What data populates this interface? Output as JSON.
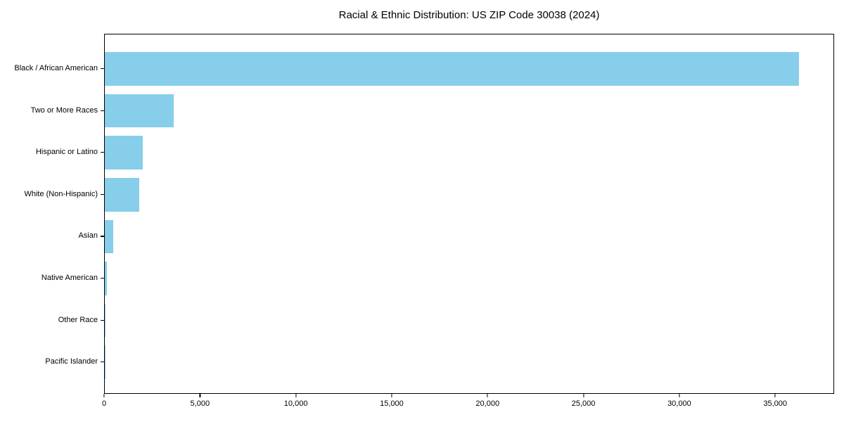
{
  "chart_data": {
    "type": "bar",
    "orientation": "horizontal",
    "title": "Racial & Ethnic Distribution: US ZIP Code 30038 (2024)",
    "categories": [
      "Black / African American",
      "Two or More Races",
      "Hispanic or Latino",
      "White (Non-Hispanic)",
      "Asian",
      "Native American",
      "Other Race",
      "Pacific Islander"
    ],
    "values": [
      36200,
      3580,
      1970,
      1780,
      430,
      110,
      45,
      10
    ],
    "xlabel": "",
    "ylabel": "",
    "xlim": [
      0,
      38000
    ],
    "xticks": [
      0,
      5000,
      10000,
      15000,
      20000,
      25000,
      30000,
      35000
    ],
    "xtick_labels": [
      "0",
      "5,000",
      "10,000",
      "15,000",
      "20,000",
      "25,000",
      "30,000",
      "35,000"
    ],
    "bar_color": "#87CEEB",
    "spine_color": "#000000",
    "text_color": "#000000",
    "grid": false,
    "legend": null,
    "value_labels_shown": false
  }
}
